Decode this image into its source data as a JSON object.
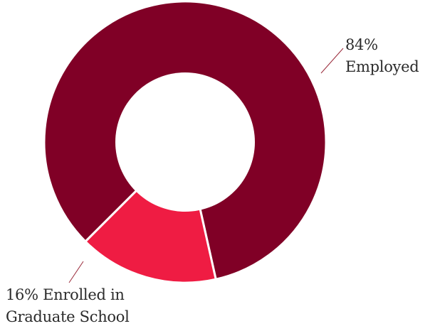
{
  "chart_data": {
    "type": "pie",
    "variant": "donut",
    "start_angle_deg": 225,
    "slices": [
      {
        "name": "Employed",
        "value": 84,
        "color": "#800026",
        "label_lines": [
          "84%",
          "Employed"
        ]
      },
      {
        "name": "Enrolled in Graduate School",
        "value": 16,
        "color": "#ef1c43",
        "label_lines": [
          "16% Enrolled in",
          "Graduate School"
        ]
      }
    ],
    "legend": "none",
    "grid": false
  }
}
